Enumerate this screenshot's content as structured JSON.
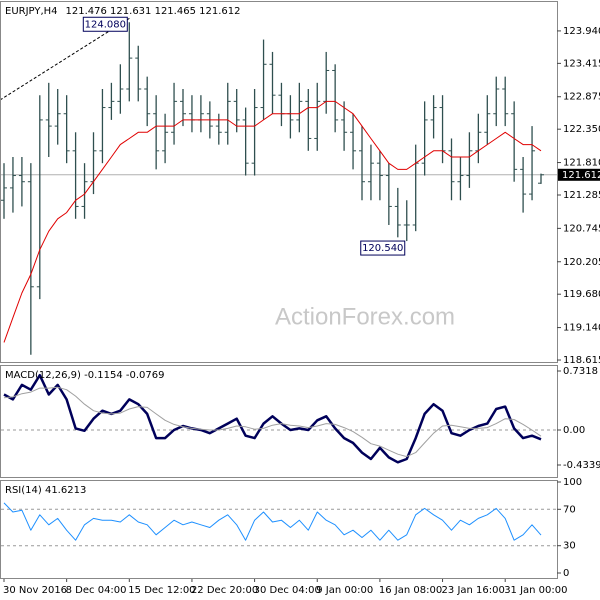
{
  "chart_data": [
    {
      "type": "ohlc",
      "title": "EURJPY,H4",
      "subtitle": "121.476 121.631 121.465 121.612",
      "color": "#2f4f4f",
      "categories": [
        "30 Nov 2016",
        null,
        null,
        null,
        null,
        null,
        null,
        "8 Dec 04:00",
        null,
        null,
        null,
        null,
        null,
        null,
        "15 Dec 12:00",
        null,
        null,
        null,
        null,
        null,
        null,
        "22 Dec 20:00",
        null,
        null,
        null,
        null,
        null,
        null,
        "30 Dec 04:00",
        null,
        null,
        null,
        null,
        null,
        null,
        "9 Jan 00:00",
        null,
        null,
        null,
        null,
        null,
        null,
        "16 Jan 08:00",
        null,
        null,
        null,
        null,
        null,
        null,
        "23 Jan 16:00",
        null,
        null,
        null,
        null,
        null,
        null,
        "31 Jan 00:00",
        null,
        null,
        null,
        null
      ],
      "open": [
        121.2,
        121.4,
        121.6,
        121.5,
        119.8,
        122.5,
        122.4,
        122.6,
        122.0,
        121.1,
        121.5,
        122.0,
        122.7,
        122.8,
        123.0,
        123.5,
        123.0,
        122.6,
        122.0,
        122.3,
        122.8,
        122.6,
        122.5,
        122.6,
        122.4,
        122.3,
        122.8,
        122.5,
        121.8,
        122.7,
        123.4,
        122.9,
        122.6,
        122.5,
        122.8,
        122.2,
        122.8,
        123.3,
        122.5,
        122.3,
        122.0,
        121.5,
        121.8,
        121.6,
        121.1,
        120.8,
        120.8,
        121.8,
        122.5,
        122.7,
        122.0,
        121.5,
        121.6,
        122.0,
        122.3,
        122.6,
        123.0,
        122.6,
        121.7,
        121.3,
        121.476
      ],
      "high": [
        121.8,
        121.9,
        121.9,
        121.8,
        122.9,
        123.1,
        123.0,
        122.9,
        122.3,
        121.8,
        122.3,
        123.0,
        123.1,
        123.4,
        124.08,
        123.7,
        123.2,
        122.9,
        122.6,
        123.1,
        123.0,
        122.9,
        122.9,
        122.8,
        122.6,
        123.1,
        123.0,
        122.7,
        123.0,
        123.8,
        123.6,
        123.1,
        122.9,
        123.1,
        123.0,
        123.1,
        123.6,
        123.4,
        122.8,
        122.6,
        122.4,
        122.1,
        122.0,
        121.8,
        121.4,
        121.2,
        122.1,
        122.8,
        122.9,
        122.9,
        122.2,
        121.9,
        122.3,
        122.6,
        122.9,
        123.2,
        123.2,
        122.8,
        121.9,
        122.4,
        121.631
      ],
      "low": [
        120.9,
        121.0,
        121.1,
        118.7,
        119.6,
        121.9,
        122.1,
        121.8,
        120.9,
        120.9,
        121.3,
        121.8,
        122.5,
        122.6,
        122.8,
        122.8,
        122.4,
        121.7,
        121.8,
        122.1,
        122.4,
        122.3,
        122.3,
        122.2,
        122.1,
        122.1,
        122.3,
        121.6,
        121.6,
        122.5,
        122.6,
        122.4,
        122.2,
        122.3,
        122.0,
        122.0,
        122.6,
        122.3,
        122.0,
        121.7,
        121.2,
        121.2,
        121.2,
        120.8,
        120.6,
        120.54,
        120.7,
        121.6,
        122.2,
        121.8,
        121.2,
        121.2,
        121.4,
        121.8,
        122.1,
        122.4,
        122.4,
        121.5,
        121.0,
        121.2,
        121.465
      ],
      "close": [
        121.4,
        121.6,
        121.5,
        119.8,
        122.5,
        122.4,
        122.6,
        122.0,
        121.1,
        121.5,
        122.0,
        122.7,
        122.8,
        123.0,
        123.5,
        123.0,
        122.6,
        122.0,
        122.3,
        122.8,
        122.6,
        122.5,
        122.6,
        122.4,
        122.3,
        122.8,
        122.5,
        121.8,
        122.7,
        123.4,
        122.9,
        122.6,
        122.5,
        122.8,
        122.2,
        122.8,
        123.3,
        122.5,
        122.3,
        122.0,
        121.5,
        121.8,
        121.6,
        121.1,
        120.8,
        120.8,
        121.8,
        122.5,
        122.7,
        122.0,
        121.5,
        121.6,
        122.0,
        122.3,
        122.6,
        123.0,
        122.6,
        121.7,
        121.3,
        122.0,
        121.612
      ],
      "series": [
        {
          "color": "#e00000",
          "width": 1,
          "values": [
            118.9,
            119.3,
            119.7,
            120.0,
            120.4,
            120.7,
            120.9,
            121.0,
            121.2,
            121.3,
            121.5,
            121.7,
            121.9,
            122.1,
            122.2,
            122.3,
            122.3,
            122.4,
            122.4,
            122.4,
            122.5,
            122.5,
            122.5,
            122.5,
            122.5,
            122.5,
            122.4,
            122.4,
            122.4,
            122.5,
            122.6,
            122.6,
            122.6,
            122.6,
            122.7,
            122.7,
            122.8,
            122.8,
            122.7,
            122.6,
            122.4,
            122.2,
            122.0,
            121.8,
            121.7,
            121.7,
            121.8,
            121.9,
            122.0,
            122.0,
            121.9,
            121.9,
            121.9,
            122.0,
            122.1,
            122.2,
            122.3,
            122.2,
            122.1,
            122.1,
            122.0
          ]
        }
      ],
      "last_price": 121.612,
      "annotations": [
        {
          "value": 124.08,
          "label": "124.080"
        },
        {
          "value": 120.54,
          "label": "120.540"
        }
      ],
      "ylim": [
        118.583,
        124.424
      ],
      "yticks": [
        {
          "value": 123.94,
          "label": "123.940"
        },
        123.415,
        122.875,
        {
          "value": 122.35,
          "label": "122.350"
        },
        {
          "value": 121.81,
          "label": "121.810"
        },
        121.285,
        120.745,
        120.205,
        {
          "value": 119.68,
          "label": "119.680"
        },
        {
          "value": 119.14,
          "label": "119.140"
        },
        118.615
      ],
      "grid": false
    },
    {
      "type": "line",
      "title": "MACD(12,26,9) -0.1154 -0.0769",
      "series": [
        {
          "color": "#00005a",
          "width": 2.5,
          "values": [
            0.44,
            0.38,
            0.56,
            0.5,
            0.68,
            0.44,
            0.56,
            0.38,
            0.02,
            -0.01,
            0.14,
            0.24,
            0.2,
            0.24,
            0.38,
            0.32,
            0.2,
            -0.1,
            -0.1,
            0,
            0.05,
            0.02,
            0,
            -0.04,
            0.02,
            0.08,
            0.14,
            -0.07,
            -0.1,
            0.08,
            0.17,
            0.08,
            0,
            0.02,
            0,
            0.12,
            0.17,
            0.02,
            -0.1,
            -0.16,
            -0.28,
            -0.36,
            -0.22,
            -0.34,
            -0.4,
            -0.36,
            -0.1,
            0.2,
            0.32,
            0.24,
            -0.04,
            -0.07,
            0,
            0.05,
            0.08,
            0.26,
            0.29,
            0.02,
            -0.1,
            -0.07,
            -0.1154
          ]
        },
        {
          "color": "#a0a0a0",
          "width": 1,
          "values": [
            0.4,
            0.41,
            0.45,
            0.47,
            0.52,
            0.52,
            0.53,
            0.5,
            0.42,
            0.32,
            0.24,
            0.21,
            0.2,
            0.21,
            0.26,
            0.29,
            0.28,
            0.2,
            0.12,
            0.07,
            0.04,
            0.02,
            0.01,
            0,
            0,
            0.02,
            0.05,
            0.04,
            0.01,
            0.02,
            0.06,
            0.08,
            0.06,
            0.05,
            0.03,
            0.05,
            0.08,
            0.07,
            0.03,
            -0.02,
            -0.09,
            -0.17,
            -0.2,
            -0.25,
            -0.3,
            -0.33,
            -0.28,
            -0.16,
            -0.04,
            0.05,
            0.06,
            0.04,
            0.02,
            0.02,
            0.03,
            0.08,
            0.14,
            0.13,
            0.07,
            0,
            -0.0769
          ]
        }
      ],
      "ylim": [
        -0.4339,
        0.7318
      ],
      "yticks": [
        0.7318,
        {
          "value": 0,
          "label": "0.00"
        },
        -0.4339
      ],
      "grid": true
    },
    {
      "type": "line",
      "title": "RSI(14) 41.6213",
      "series": [
        {
          "color": "#1e90ff",
          "width": 1,
          "values": [
            77,
            67,
            69,
            47,
            64,
            53,
            60,
            47,
            36,
            53,
            60,
            58,
            58,
            56,
            64,
            56,
            53,
            42,
            50,
            58,
            53,
            56,
            53,
            50,
            58,
            64,
            53,
            36,
            58,
            67,
            56,
            58,
            50,
            58,
            47,
            67,
            58,
            53,
            42,
            47,
            39,
            47,
            36,
            47,
            36,
            42,
            64,
            71,
            64,
            58,
            47,
            58,
            53,
            60,
            64,
            71,
            60,
            36,
            42,
            53,
            41.6213
          ]
        }
      ],
      "ylim": [
        0,
        100
      ],
      "yticks": [
        100,
        70,
        30,
        0
      ],
      "grid": true
    }
  ],
  "watermark": "ActionForex.com"
}
